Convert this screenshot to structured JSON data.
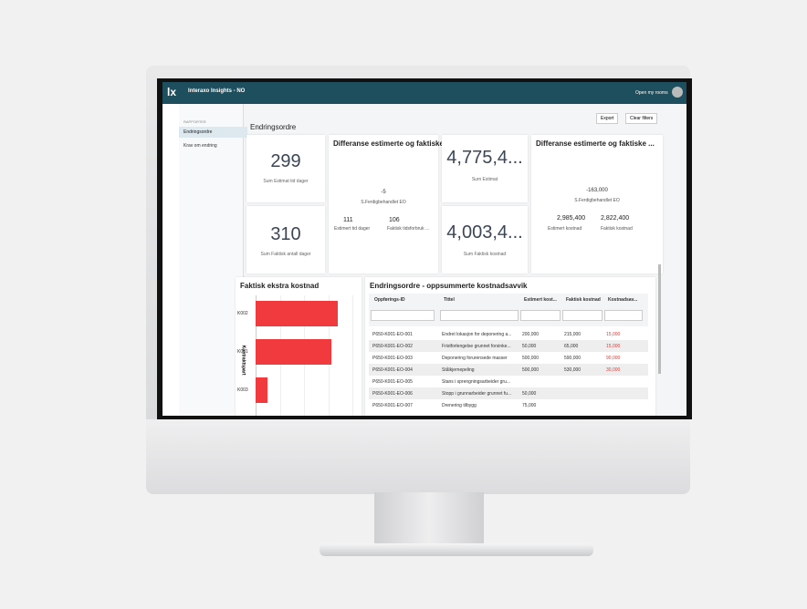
{
  "header": {
    "app_title": "Interaxo Insights - NO",
    "open_rooms": "Open my rooms"
  },
  "sidebar": {
    "section": "RAPPORTER",
    "items": [
      "Endringsordre",
      "Krav om endring"
    ]
  },
  "page": {
    "title": "Endringsordre",
    "buttons": [
      "Export",
      "Clear filters"
    ]
  },
  "cards": {
    "estimat_tid": {
      "value": "299",
      "label": "Sum Estimat tid dager"
    },
    "faktisk_dager": {
      "value": "310",
      "label": "Sum Faktisk antall dager"
    },
    "diff_tid": {
      "title": "Differanse estimerte og faktiske ...",
      "delta": "-5",
      "subtitle": "S.Ferdigbehandlet EO",
      "left_value": "111",
      "left_label": "Estimert tid dager",
      "right_value": "106",
      "right_label": "Faktisk tidsforbruk ..."
    },
    "sum_estimat": {
      "value": "4,775,4...",
      "label": "Sum Estimat"
    },
    "sum_faktisk": {
      "value": "4,003,4...",
      "label": "Sum Faktisk kostnad"
    },
    "diff_kost": {
      "title": "Differanse estimerte og faktiske ...",
      "delta": "-163,000",
      "subtitle": "S.Ferdigbehandlet EO",
      "left_value": "2,985,400",
      "left_label": "Estimert kostnad",
      "right_value": "2,822,400",
      "right_label": "Faktisk kostnad"
    }
  },
  "chart_data": {
    "type": "bar",
    "orientation": "horizontal",
    "title": "Faktisk ekstra kostnad",
    "y_label": "Kontraktspart",
    "categories": [
      "K002",
      "K001",
      "K003"
    ],
    "values": [
      85,
      78,
      12
    ],
    "color": "#f03a3e",
    "xlim": [
      0,
      100
    ]
  },
  "table": {
    "title": "Endringsordre - oppsummerte kostnadsavvik",
    "columns": [
      "Oppførings-ID",
      "Tittel",
      "Estimert kost...",
      "Faktisk kostnad",
      "Kostnadsav..."
    ],
    "rows": [
      [
        "P650-K001-EO-001",
        "Endret lokasjon for deponering a...",
        "200,000",
        "215,000",
        "15,000"
      ],
      [
        "P650-K001-EO-002",
        "Fristforlengelse grunnet forsinke...",
        "50,000",
        "65,000",
        "15,000"
      ],
      [
        "P650-K001-EO-003",
        "Deponering forurensede masser",
        "500,000",
        "590,000",
        "90,000"
      ],
      [
        "P650-K001-EO-004",
        "Stålkjernepeling",
        "500,000",
        "530,000",
        "30,000"
      ],
      [
        "P650-K001-EO-005",
        "Stans i sprengningsarbeider gru...",
        null,
        null,
        null
      ],
      [
        "P650-K001-EO-006",
        "Stopp i grunnarbeider grunnet fu...",
        "50,000",
        null,
        null
      ],
      [
        "P650-K001-EO-007",
        "Drenering tilbygg",
        "75,000",
        null,
        null
      ]
    ]
  }
}
